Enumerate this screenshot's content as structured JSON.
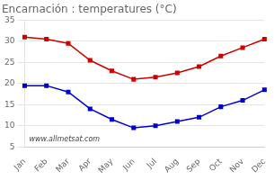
{
  "chart_data": {
    "type": "line",
    "title": "Encarnación : temperatures (°C)",
    "categories": [
      "Jan",
      "Feb",
      "Mar",
      "Apr",
      "May",
      "Jun",
      "Jul",
      "Aug",
      "Sep",
      "Oct",
      "Nov",
      "Dec"
    ],
    "series": [
      {
        "color": "#cc0000",
        "marker": "square",
        "values": [
          31,
          30.5,
          29.5,
          25.5,
          23,
          21,
          21.5,
          22.5,
          24,
          26.5,
          28.5,
          30.5
        ]
      },
      {
        "color": "#0000cc",
        "marker": "square",
        "values": [
          19.5,
          19.5,
          18,
          14,
          11.5,
          9.5,
          10,
          11,
          12,
          14.5,
          16,
          18.5
        ]
      }
    ],
    "ylim": [
      5,
      35
    ],
    "yticks": [
      5,
      10,
      15,
      20,
      25,
      30,
      35
    ],
    "grid": true,
    "annotations": [
      "www.allmetsat.com"
    ]
  }
}
